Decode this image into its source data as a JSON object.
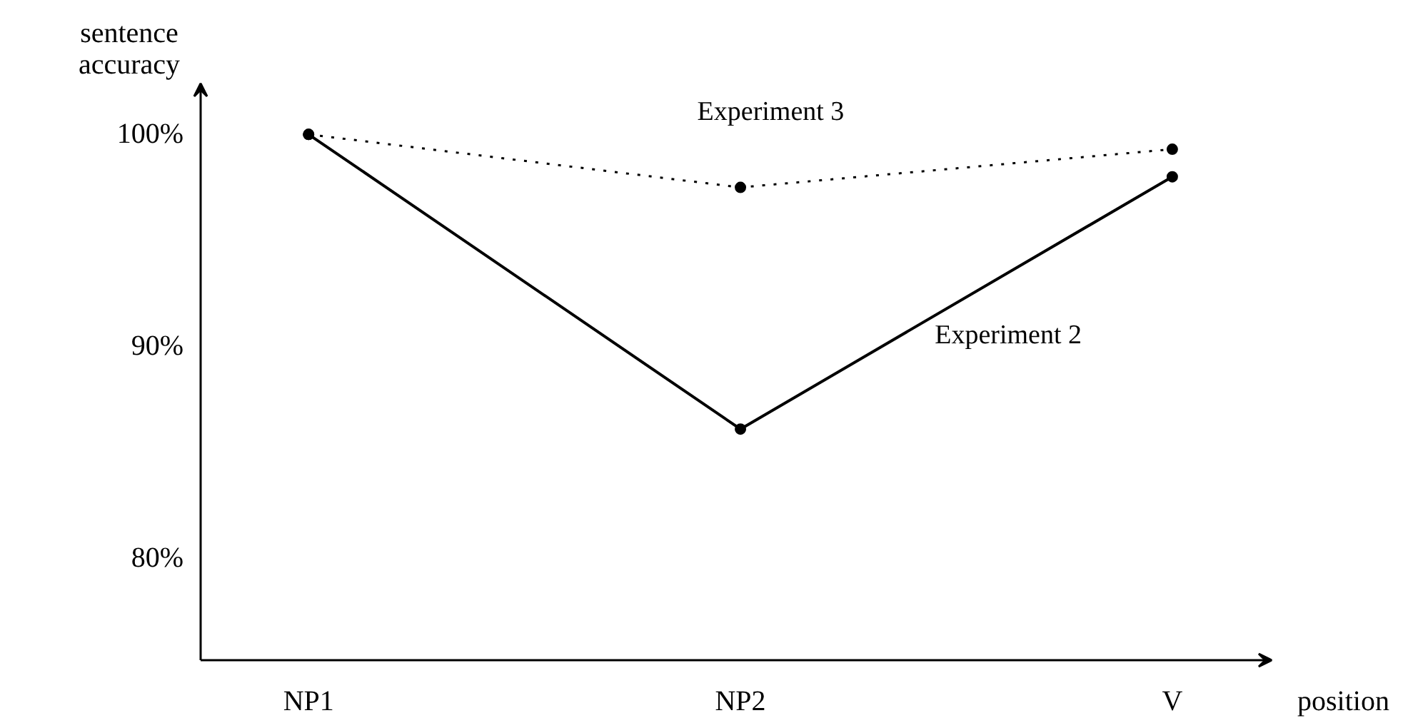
{
  "chart_data": {
    "type": "line",
    "xlabel": "position",
    "ylabel": "sentence accuracy",
    "categories": [
      "NP1",
      "NP2",
      "V"
    ],
    "ylim": [
      75.2,
      102.4
    ],
    "yticks": [
      {
        "value": 80,
        "label": "80%"
      },
      {
        "value": 90,
        "label": "90%"
      },
      {
        "value": 100,
        "label": "100%"
      }
    ],
    "marker": "circle",
    "grid": false,
    "legend": false,
    "series": [
      {
        "name": "Experiment 2",
        "color": "#000000",
        "line_style": "solid",
        "values": [
          100,
          86.1,
          98.0
        ]
      },
      {
        "name": "Experiment 3",
        "color": "#000000",
        "line_style": "dotted",
        "values": [
          100,
          97.5,
          99.3
        ]
      }
    ]
  }
}
